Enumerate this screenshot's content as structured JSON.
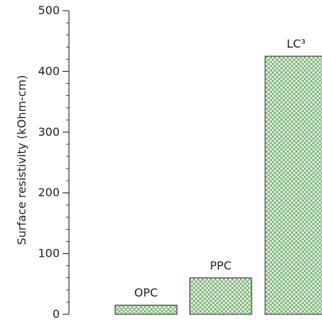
{
  "chart_data": {
    "type": "bar",
    "categories": [
      "OPC",
      "PPC",
      "LC³"
    ],
    "values": [
      15,
      60,
      425
    ],
    "ylabel": "Surface resistivity (kOhm-cm)",
    "ylim": [
      0,
      500
    ],
    "yticks": [
      0,
      100,
      200,
      300,
      400,
      500
    ],
    "grid": false,
    "bar_fill_pattern": "crosshatch",
    "bar_color": "#5aa05a",
    "bar_background": "#e9f3e3",
    "bar_border_color": "#3f3f3f"
  }
}
